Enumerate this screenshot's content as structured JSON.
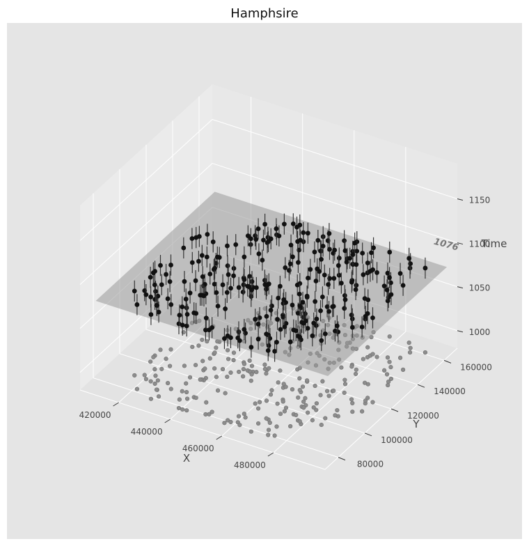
{
  "chart_data": {
    "type": "scatter",
    "subtype": "3d-scatter-with-errorbars",
    "title": "Hamphsire",
    "xlabel": "X",
    "ylabel": "Y",
    "zlabel": "Time",
    "xlim": [
      405000,
      500000
    ],
    "ylim": [
      70000,
      170000
    ],
    "zlim": [
      980.0,
      1190
    ],
    "xticks": [
      420000,
      440000,
      460000,
      480000
    ],
    "yticks": [
      80000,
      100000,
      120000,
      140000,
      160000
    ],
    "zticks": [
      1000,
      1050,
      1100,
      1150
    ],
    "plane": {
      "z": 1076,
      "label": "1076",
      "color": "#999999"
    },
    "point_color": "#111111",
    "shadow_color": "#8c8c8c",
    "error_bar_halfwidth": 12,
    "grid": true,
    "background": "#e5e5e5",
    "pane_color": "#ebebeb",
    "points_note_count": 430,
    "points": []
  }
}
